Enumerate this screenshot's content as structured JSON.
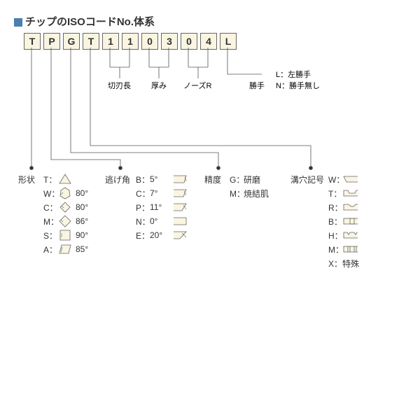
{
  "title": "チップのISOコードNo.体系",
  "code": [
    "T",
    "P",
    "G",
    "T",
    "1",
    "1",
    "0",
    "3",
    "0",
    "4",
    "L"
  ],
  "mid_labels": {
    "l5": "切刃長",
    "l7": "厚み",
    "l9": "ノーズR",
    "l11": "勝手"
  },
  "hand": {
    "L": "左勝手",
    "N": "勝手無し"
  },
  "shape": {
    "title": "形状",
    "items": [
      {
        "k": "T",
        "a": ""
      },
      {
        "k": "W",
        "a": "80°"
      },
      {
        "k": "C",
        "a": "80°"
      },
      {
        "k": "M",
        "a": "86°"
      },
      {
        "k": "S",
        "a": "90°"
      },
      {
        "k": "A",
        "a": "85°"
      }
    ]
  },
  "relief": {
    "title": "逃げ角",
    "items": [
      {
        "k": "B",
        "a": "5°"
      },
      {
        "k": "C",
        "a": "7°"
      },
      {
        "k": "P",
        "a": "11°"
      },
      {
        "k": "N",
        "a": "0°"
      },
      {
        "k": "E",
        "a": "20°"
      }
    ]
  },
  "precision": {
    "title": "精度",
    "items": [
      {
        "k": "G",
        "v": "研磨"
      },
      {
        "k": "M",
        "v": "焼結肌"
      }
    ]
  },
  "hole": {
    "title": "溝穴記号",
    "items": [
      {
        "k": "W"
      },
      {
        "k": "T"
      },
      {
        "k": "R"
      },
      {
        "k": "B"
      },
      {
        "k": "H"
      },
      {
        "k": "M"
      },
      {
        "k": "X",
        "v": "特殊"
      }
    ]
  },
  "colors": {
    "line": "#555",
    "box_bg": "#faf5e0",
    "box_border": "#666",
    "dot": "#333",
    "title_blue": "#4a7fb0"
  }
}
